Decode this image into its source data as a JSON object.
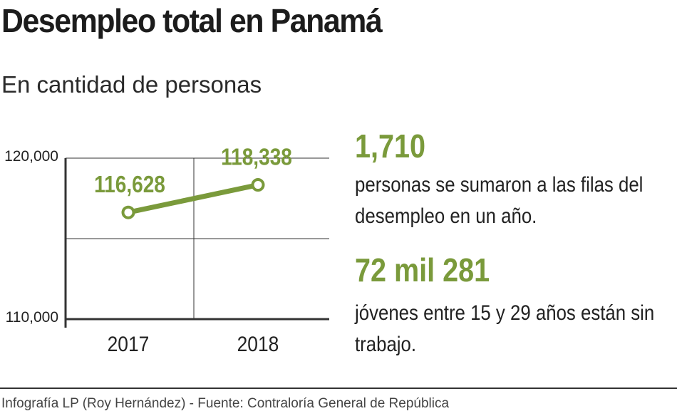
{
  "header": {
    "title": "Desempleo total en Panamá",
    "subtitle": "En cantidad de personas"
  },
  "colors": {
    "accent": "#7a9a3b",
    "text": "#222222",
    "grid": "#333333"
  },
  "chart_data": {
    "type": "line",
    "title": "Desempleo total en Panamá",
    "subtitle": "En cantidad de personas",
    "xlabel": "",
    "ylabel": "",
    "categories": [
      "2017",
      "2018"
    ],
    "series": [
      {
        "values": [
          116628,
          118338
        ]
      }
    ],
    "data_labels": [
      "116,628",
      "118,338"
    ],
    "y_ticks": [
      110000,
      120000
    ],
    "y_tick_labels": [
      "110,000",
      "120,000"
    ],
    "ylim": [
      110000,
      120000
    ],
    "grid": true,
    "legend": "none"
  },
  "stats": [
    {
      "number": "1,710",
      "text": "personas se sumaron a las filas del desempleo en un año."
    },
    {
      "number": "72 mil 281",
      "text": "jóvenes entre 15 y 29 años están sin trabajo."
    }
  ],
  "footer": "Infografía LP (Roy Hernández) -  Fuente: Contraloría General de República"
}
